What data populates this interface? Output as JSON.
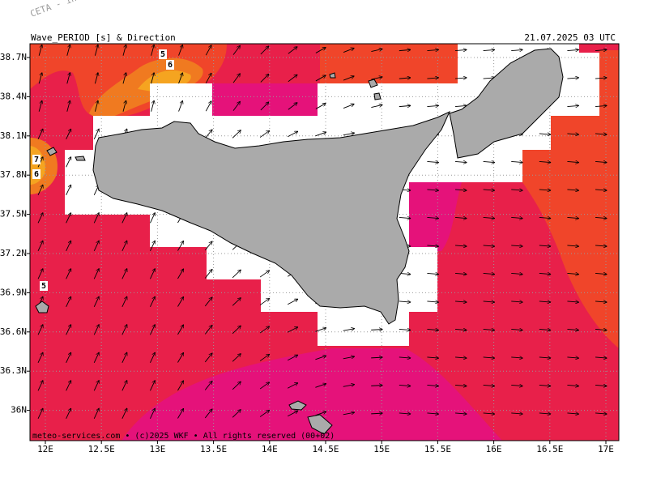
{
  "header": {
    "title": "Wave_PERIOD [s] & Direction",
    "timestamp": "21.07.2025 03 UTC"
  },
  "watermark": "CETA - in",
  "axes": {
    "lat_labels": [
      "38.7N",
      "38.4N",
      "38.1N",
      "37.8N",
      "37.5N",
      "37.2N",
      "36.9N",
      "36.6N",
      "36.3N",
      "36N"
    ],
    "lon_labels": [
      "12E",
      "12.5E",
      "13E",
      "13.5E",
      "14E",
      "14.5E",
      "15E",
      "15.5E",
      "16E",
      "16.5E",
      "17E"
    ]
  },
  "contour_labels": [
    "5",
    "6",
    "7",
    "6",
    "5"
  ],
  "footer": "meteo-services.com • (c)2025 WKF • All rights reserved (00+02)"
}
